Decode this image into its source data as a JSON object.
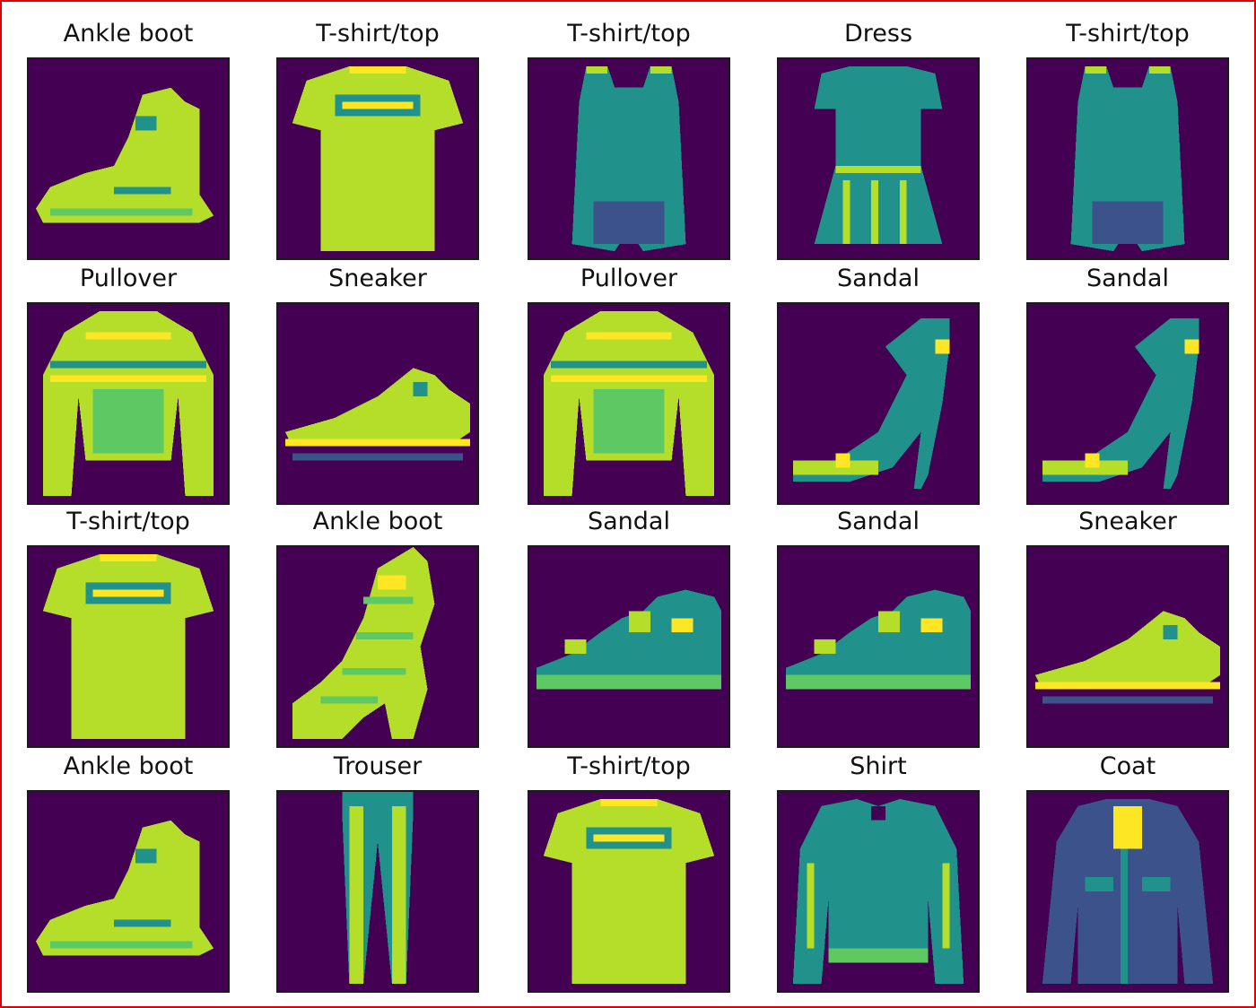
{
  "colors": {
    "background": "#440154",
    "low": "#3b528b",
    "mid": "#21918c",
    "midhigh": "#5ec962",
    "high": "#b5de2b",
    "peak": "#fde725",
    "frame": "#e00000"
  },
  "grid": {
    "rows": 4,
    "cols": 5,
    "items": [
      {
        "label": "Ankle boot",
        "kind": "boot"
      },
      {
        "label": "T-shirt/top",
        "kind": "tshirt"
      },
      {
        "label": "T-shirt/top",
        "kind": "tank"
      },
      {
        "label": "Dress",
        "kind": "dress"
      },
      {
        "label": "T-shirt/top",
        "kind": "tank"
      },
      {
        "label": "Pullover",
        "kind": "pullover"
      },
      {
        "label": "Sneaker",
        "kind": "sneaker"
      },
      {
        "label": "Pullover",
        "kind": "pullover"
      },
      {
        "label": "Sandal",
        "kind": "sandal-heel"
      },
      {
        "label": "Sandal",
        "kind": "sandal-heel"
      },
      {
        "label": "T-shirt/top",
        "kind": "tshirt"
      },
      {
        "label": "Ankle boot",
        "kind": "boot-high"
      },
      {
        "label": "Sandal",
        "kind": "sandal-flat"
      },
      {
        "label": "Sandal",
        "kind": "sandal-flat"
      },
      {
        "label": "Sneaker",
        "kind": "sneaker"
      },
      {
        "label": "Ankle boot",
        "kind": "boot"
      },
      {
        "label": "Trouser",
        "kind": "trouser"
      },
      {
        "label": "T-shirt/top",
        "kind": "tshirt"
      },
      {
        "label": "Shirt",
        "kind": "shirt"
      },
      {
        "label": "Coat",
        "kind": "coat"
      }
    ]
  }
}
